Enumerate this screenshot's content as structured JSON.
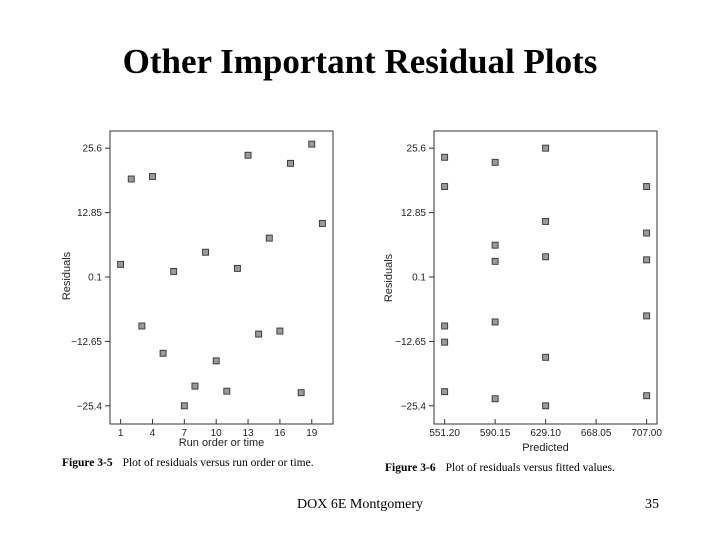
{
  "slide": {
    "title": "Other Important Residual Plots",
    "footer": "DOX 6E Montgomery",
    "page_number": "35"
  },
  "captions": [
    {
      "figure": "Figure 3-5",
      "text": "Plot of residuals versus run order or time."
    },
    {
      "figure": "Figure 3-6",
      "text": "Plot of residuals versus fitted values."
    }
  ],
  "chart_data": [
    {
      "type": "scatter",
      "title": "",
      "xlabel": "Run order or time",
      "ylabel": "Residuals",
      "xlim": [
        0,
        21
      ],
      "ylim": [
        -29,
        29
      ],
      "x_ticks": [
        "1",
        "4",
        "7",
        "10",
        "13",
        "16",
        "19"
      ],
      "y_ticks": [
        "25.6",
        "12.85",
        "0.1",
        "−12.65",
        "−25.4"
      ],
      "y_tick_values": [
        25.6,
        12.85,
        0.1,
        -12.65,
        -25.4
      ],
      "x_tick_values": [
        1,
        4,
        7,
        10,
        13,
        16,
        19
      ],
      "grid": false,
      "points": [
        {
          "x": 1,
          "y": 2.6
        },
        {
          "x": 2,
          "y": 19.5
        },
        {
          "x": 3,
          "y": -9.6
        },
        {
          "x": 4,
          "y": 20.0
        },
        {
          "x": 5,
          "y": -15.0
        },
        {
          "x": 6,
          "y": 1.2
        },
        {
          "x": 7,
          "y": -25.4
        },
        {
          "x": 8,
          "y": -21.5
        },
        {
          "x": 9,
          "y": 5.0
        },
        {
          "x": 10,
          "y": -16.5
        },
        {
          "x": 11,
          "y": -22.5
        },
        {
          "x": 12,
          "y": 1.8
        },
        {
          "x": 13,
          "y": 24.2
        },
        {
          "x": 14,
          "y": -11.2
        },
        {
          "x": 15,
          "y": 7.8
        },
        {
          "x": 16,
          "y": -10.6
        },
        {
          "x": 17,
          "y": 22.6
        },
        {
          "x": 18,
          "y": -22.8
        },
        {
          "x": 19,
          "y": 26.4
        },
        {
          "x": 20,
          "y": 10.7
        }
      ]
    },
    {
      "type": "scatter",
      "title": "",
      "xlabel": "Predicted",
      "ylabel": "Residuals",
      "xlim": [
        543,
        715
      ],
      "ylim": [
        -29,
        29
      ],
      "x_ticks": [
        "551.20",
        "590.15",
        "629.10",
        "668.05",
        "707.00"
      ],
      "x_tick_values": [
        551.2,
        590.15,
        629.1,
        668.05,
        707.0
      ],
      "y_ticks": [
        "25.6",
        "12.85",
        "0.1",
        "−12.65",
        "−25.4"
      ],
      "y_tick_values": [
        25.6,
        12.85,
        0.1,
        -12.65,
        -25.4
      ],
      "grid": false,
      "points": [
        {
          "x": 551.2,
          "y": 23.8
        },
        {
          "x": 551.2,
          "y": 18.0
        },
        {
          "x": 551.2,
          "y": -9.6
        },
        {
          "x": 551.2,
          "y": -12.8
        },
        {
          "x": 551.2,
          "y": -22.6
        },
        {
          "x": 590.15,
          "y": 22.8
        },
        {
          "x": 590.15,
          "y": 6.4
        },
        {
          "x": 590.15,
          "y": 3.2
        },
        {
          "x": 590.15,
          "y": -8.8
        },
        {
          "x": 590.15,
          "y": -24.0
        },
        {
          "x": 629.1,
          "y": 25.6
        },
        {
          "x": 629.1,
          "y": 11.1
        },
        {
          "x": 629.1,
          "y": 4.1
        },
        {
          "x": 629.1,
          "y": -15.8
        },
        {
          "x": 629.1,
          "y": -25.4
        },
        {
          "x": 707.0,
          "y": 18.0
        },
        {
          "x": 707.0,
          "y": 8.8
        },
        {
          "x": 707.0,
          "y": 3.5
        },
        {
          "x": 707.0,
          "y": -7.6
        },
        {
          "x": 707.0,
          "y": -23.4
        }
      ]
    }
  ]
}
